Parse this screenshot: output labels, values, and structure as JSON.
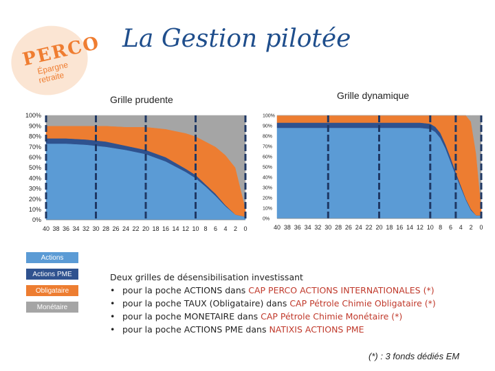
{
  "logo": {
    "word": "PERCO",
    "line1": "Épargne",
    "line2": "retraite"
  },
  "header": {
    "title": "La Gestion pilotée"
  },
  "colors": {
    "actions": "#5b9bd5",
    "actions_pme": "#2f528f",
    "obligataire": "#ed7d31",
    "monetaire": "#a5a5a5",
    "marker": "#1f3864"
  },
  "chart_data": [
    {
      "type": "area",
      "title": "Grille prudente",
      "stacked": true,
      "x_reversed": true,
      "x_ticks": [
        40,
        38,
        36,
        34,
        32,
        30,
        28,
        26,
        24,
        22,
        20,
        18,
        16,
        14,
        12,
        10,
        8,
        6,
        4,
        2,
        0
      ],
      "y_ticks": [
        "0%",
        "10%",
        "20%",
        "30%",
        "40%",
        "50%",
        "60%",
        "70%",
        "80%",
        "90%",
        "100%"
      ],
      "ylim": [
        0,
        100
      ],
      "x": [
        40,
        36,
        32,
        28,
        24,
        20,
        16,
        12,
        10,
        8,
        6,
        4,
        2,
        0
      ],
      "series": [
        {
          "name": "Actions",
          "values": [
            73,
            73,
            72,
            70,
            67,
            63,
            56,
            46,
            40,
            32,
            23,
            13,
            5,
            3
          ]
        },
        {
          "name": "Actions PME",
          "values": [
            5,
            5,
            5,
            5,
            4,
            4,
            4,
            3,
            3,
            2,
            2,
            1,
            0,
            0
          ]
        },
        {
          "name": "Obligataire",
          "values": [
            12,
            12,
            13,
            15,
            18,
            22,
            27,
            34,
            37,
            41,
            45,
            48,
            45,
            8
          ]
        },
        {
          "name": "Monétaire",
          "values": [
            10,
            10,
            10,
            10,
            11,
            11,
            13,
            17,
            20,
            25,
            30,
            38,
            50,
            89
          ]
        }
      ],
      "markers": [
        40,
        30,
        20,
        10,
        0
      ]
    },
    {
      "type": "area",
      "title": "Grille dynamique",
      "stacked": true,
      "x_reversed": true,
      "x_ticks": [
        40,
        38,
        36,
        34,
        32,
        30,
        28,
        26,
        24,
        22,
        20,
        18,
        16,
        14,
        12,
        10,
        8,
        6,
        4,
        2,
        0
      ],
      "y_ticks": [
        "0%",
        "10%",
        "20%",
        "30%",
        "40%",
        "50%",
        "60%",
        "70%",
        "80%",
        "90%",
        "100%"
      ],
      "ylim": [
        0,
        100
      ],
      "x": [
        40,
        30,
        20,
        12,
        10,
        9,
        8,
        7,
        6,
        5,
        4,
        3,
        2,
        1,
        0
      ],
      "series": [
        {
          "name": "Actions",
          "values": [
            88,
            88,
            88,
            88,
            87,
            84,
            78,
            68,
            55,
            42,
            30,
            18,
            8,
            3,
            3
          ]
        },
        {
          "name": "Actions PME",
          "values": [
            5,
            5,
            5,
            5,
            5,
            5,
            5,
            4,
            4,
            3,
            2,
            1,
            1,
            0,
            0
          ]
        },
        {
          "name": "Obligataire",
          "values": [
            7,
            7,
            7,
            7,
            8,
            11,
            17,
            28,
            41,
            55,
            68,
            81,
            85,
            60,
            8
          ]
        },
        {
          "name": "Monétaire",
          "values": [
            0,
            0,
            0,
            0,
            0,
            0,
            0,
            0,
            0,
            0,
            0,
            0,
            6,
            37,
            89
          ]
        }
      ],
      "markers": [
        30,
        20,
        10,
        5,
        0
      ]
    }
  ],
  "legend": [
    "Actions",
    "Actions PME",
    "Obligataire",
    "Monétaire"
  ],
  "description": {
    "intro": "Deux grilles de désensibilisation investissant",
    "bullet": "•",
    "items": [
      {
        "pre": "pour la poche ACTIONS dans ",
        "fund": "CAP PERCO ACTIONS INTERNATIONALES (*)",
        "post": ""
      },
      {
        "pre": "pour la poche TAUX (Obligataire) dans ",
        "fund": "CAP Pétrole Chimie Obligataire (*)",
        "post": ""
      },
      {
        "pre": "pour la poche MONETAIRE dans ",
        "fund": "CAP Pétrole Chimie Monétaire (*)",
        "post": ""
      },
      {
        "pre": "pour la poche ACTIONS PME dans ",
        "fund": "NATIXIS ACTIONS PME",
        "post": ""
      }
    ]
  },
  "footnote": "(*) : 3 fonds dédiés EM"
}
